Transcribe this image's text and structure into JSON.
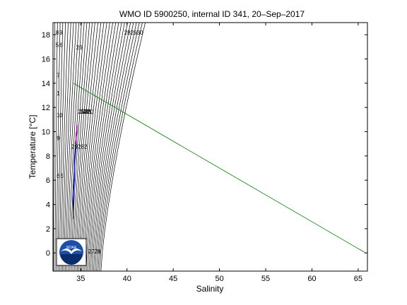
{
  "chart_data": {
    "type": "line",
    "title": "WMO ID 5900250, internal ID 341, 20–Sep–2017",
    "xlabel": "Salinity",
    "ylabel": "Temperature [°C]",
    "xlim": [
      32,
      66
    ],
    "ylim": [
      -1.5,
      19
    ],
    "xticks": [
      35,
      40,
      45,
      50,
      55,
      60,
      65
    ],
    "yticks": [
      0,
      2,
      4,
      6,
      8,
      10,
      12,
      14,
      16,
      18
    ],
    "grid": false,
    "legend": "none",
    "isopycnal_note": "Density isopycnal contours drawn as background lines",
    "series": [
      {
        "color": "#008000",
        "x": [
          34.2,
          65.8
        ],
        "y": [
          14.0,
          0.0
        ]
      },
      {
        "color": "#000000",
        "x": [
          34.6,
          34.6,
          34.5,
          34.5,
          34.4,
          34.3,
          34.3,
          34.2,
          34.2,
          34.2,
          34.2
        ],
        "y": [
          10.5,
          10.0,
          9.5,
          9.0,
          8.5,
          7.5,
          6.5,
          5.5,
          4.5,
          3.5,
          2.8
        ]
      },
      {
        "color": "#d000d0",
        "x": [
          34.6,
          34.6,
          34.5,
          34.5,
          34.4
        ],
        "y": [
          10.6,
          10.2,
          9.8,
          9.4,
          9.0
        ]
      },
      {
        "color": "#0000ff",
        "x": [
          34.5,
          34.4,
          34.3,
          34.3,
          34.2,
          34.2
        ],
        "y": [
          8.8,
          8.0,
          7.0,
          6.0,
          5.0,
          4.0
        ]
      }
    ],
    "contour_labels": [
      {
        "text": "282930",
        "x": 39.7,
        "y": 18.0
      },
      {
        "text": "26",
        "x": 34.5,
        "y": 16.8
      },
      {
        "text": "25",
        "x": 34.7,
        "y": 11.5
      },
      {
        "text": "24",
        "x": 34.9,
        "y": 11.5
      },
      {
        "text": "23",
        "x": 35.1,
        "y": 11.5
      },
      {
        "text": "22",
        "x": 35.3,
        "y": 11.5
      },
      {
        "text": "21",
        "x": 35.5,
        "y": 11.5
      },
      {
        "text": "20",
        "x": 35.7,
        "y": 11.5
      },
      {
        "text": "29282",
        "x": 34.0,
        "y": 8.6
      },
      {
        "text": "2728",
        "x": 35.8,
        "y": -0.05
      },
      {
        "text": "8",
        "x": 32.3,
        "y": 18.0
      },
      {
        "text": "9",
        "x": 32.7,
        "y": 18.0
      },
      {
        "text": "5",
        "x": 32.3,
        "y": 17.0
      },
      {
        "text": "6",
        "x": 32.7,
        "y": 17.0
      },
      {
        "text": "7",
        "x": 32.4,
        "y": 14.5
      },
      {
        "text": "1",
        "x": 32.4,
        "y": 13.0
      },
      {
        "text": "1",
        "x": 32.4,
        "y": 11.2
      },
      {
        "text": "0",
        "x": 32.7,
        "y": 11.2
      },
      {
        "text": "9",
        "x": 32.4,
        "y": 9.3
      },
      {
        "text": "6",
        "x": 32.4,
        "y": 6.2
      },
      {
        "text": "5",
        "x": 32.8,
        "y": 6.2
      }
    ],
    "logo_text": "NOAA"
  }
}
